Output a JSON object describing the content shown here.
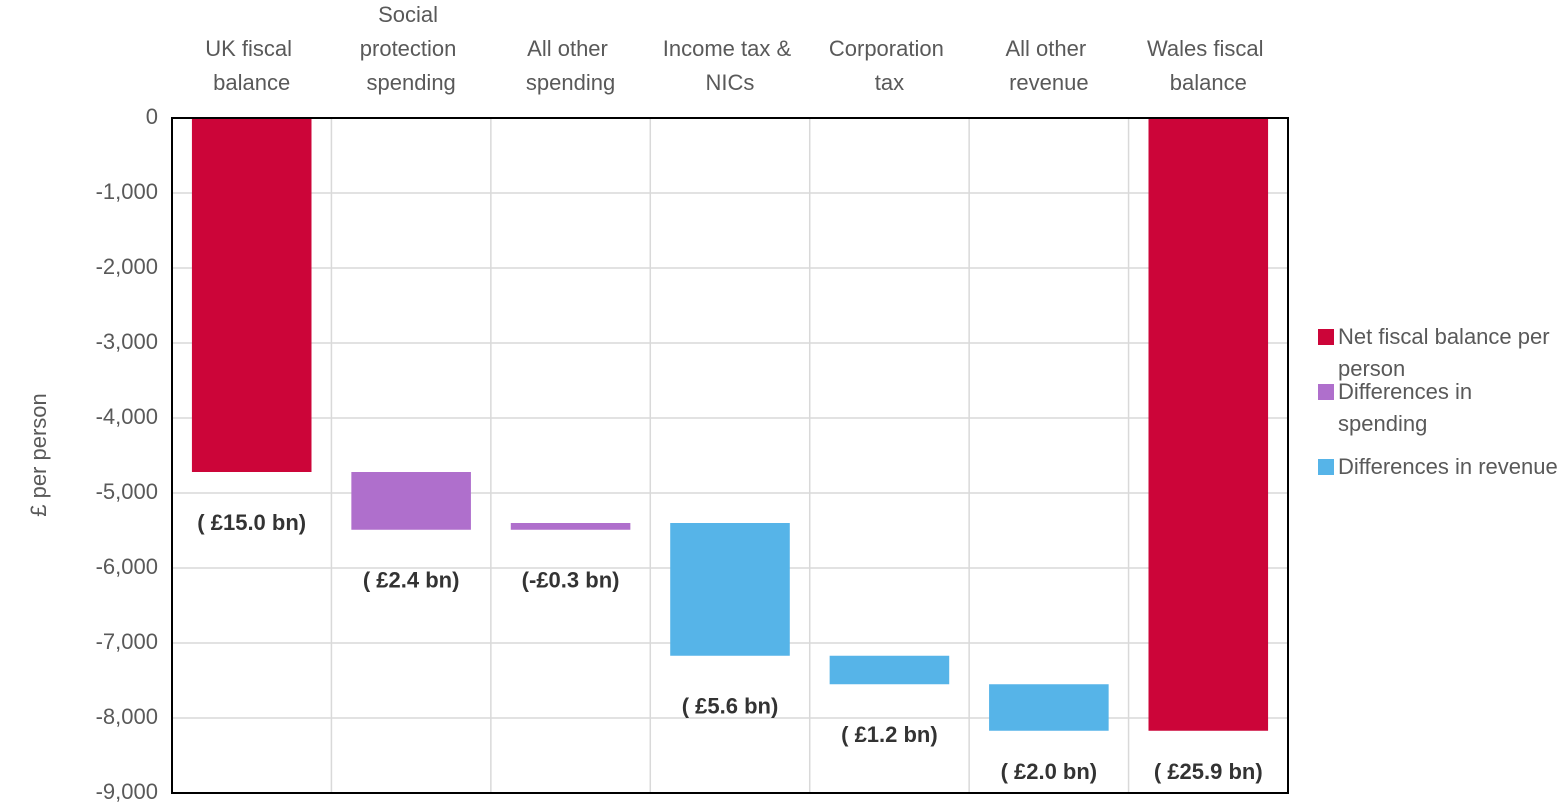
{
  "chart_data": {
    "type": "waterfall",
    "y_label": "£ per person",
    "categories": [
      "UK fiscal balance",
      "Social protection spending",
      "All other spending",
      "Income tax & NICs",
      "Corporation tax",
      "All other revenue",
      "Wales fiscal balance"
    ],
    "series": [
      {
        "name": "Net fiscal balance per person",
        "color": "#cc0539",
        "total": true,
        "values": [
          -4720,
          null,
          null,
          null,
          null,
          null,
          -8170
        ]
      },
      {
        "name": "Differences in spending",
        "color": "#af6fcc",
        "values": [
          null,
          -770,
          90,
          null,
          null,
          null,
          null
        ]
      },
      {
        "name": "Differences in revenue",
        "color": "#56b4e8",
        "values": [
          null,
          null,
          null,
          -1770,
          -380,
          -620,
          null
        ]
      }
    ],
    "annotations": [
      "( £15.0 bn)",
      "( £2.4 bn)",
      "(-£0.3 bn)",
      "( £5.6 bn)",
      "( £1.2 bn)",
      "( £2.0 bn)",
      "( £25.9 bn)"
    ],
    "ylim": [
      -9000,
      0
    ],
    "yticks": [
      0,
      {
        "value": -1000,
        "label": "-1,000"
      },
      {
        "value": -2000,
        "label": "-2,000"
      },
      {
        "value": -3000,
        "label": "-3,000"
      },
      {
        "value": -4000,
        "label": "-4,000"
      },
      {
        "value": -5000,
        "label": "-5,000"
      },
      {
        "value": -6000,
        "label": "-6,000"
      },
      {
        "value": -7000,
        "label": "-7,000"
      },
      {
        "value": -8000,
        "label": "-8,000"
      },
      {
        "value": -9000,
        "label": "-9,000"
      }
    ],
    "grid": true,
    "legend": "right"
  }
}
